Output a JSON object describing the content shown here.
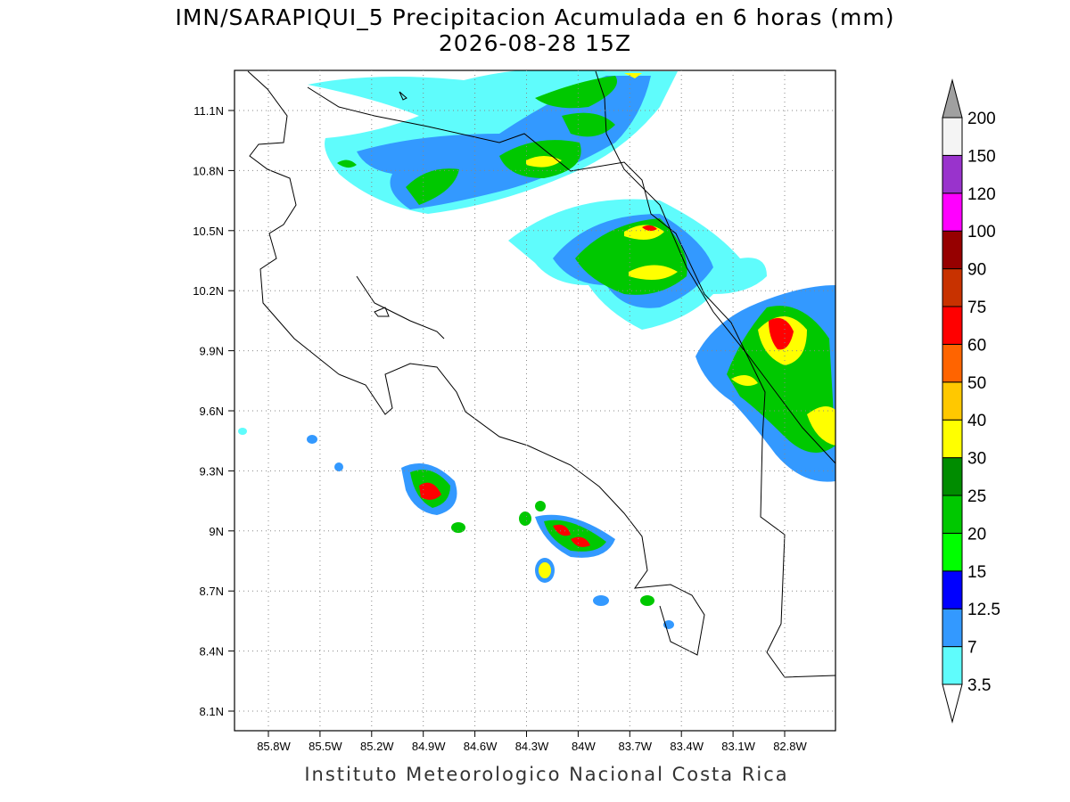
{
  "title": "IMN/SARAPIQUI_5 Precipitacion Acumulada en 6 horas (mm)",
  "subtitle": "2026-08-28 15Z",
  "map": {
    "lat_labels": [
      "11.1N",
      "10.8N",
      "10.5N",
      "10.2N",
      "9.9N",
      "9.6N",
      "9.3N",
      "9N",
      "8.7N",
      "8.4N",
      "8.1N"
    ],
    "lon_labels": [
      "85.8W",
      "85.5W",
      "85.2W",
      "84.9W",
      "84.6W",
      "84.3W",
      "84W",
      "83.7W",
      "83.4W",
      "83.1W",
      "82.8W"
    ]
  },
  "colorbar": {
    "levels": [
      3.5,
      7,
      12.5,
      15,
      20,
      25,
      30,
      40,
      50,
      60,
      75,
      90,
      100,
      120,
      150,
      200
    ],
    "colors": [
      "#ffffff",
      "#5ffcfc",
      "#3399ff",
      "#0000ff",
      "#00ff00",
      "#00c800",
      "#008c00",
      "#ffff00",
      "#ffc800",
      "#ff6400",
      "#ff0000",
      "#c83200",
      "#960000",
      "#ff00ff",
      "#9933cc",
      "#f4f4f4",
      "#a0a0a0"
    ]
  },
  "footer": "Instituto Meteorologico Nacional Costa Rica"
}
